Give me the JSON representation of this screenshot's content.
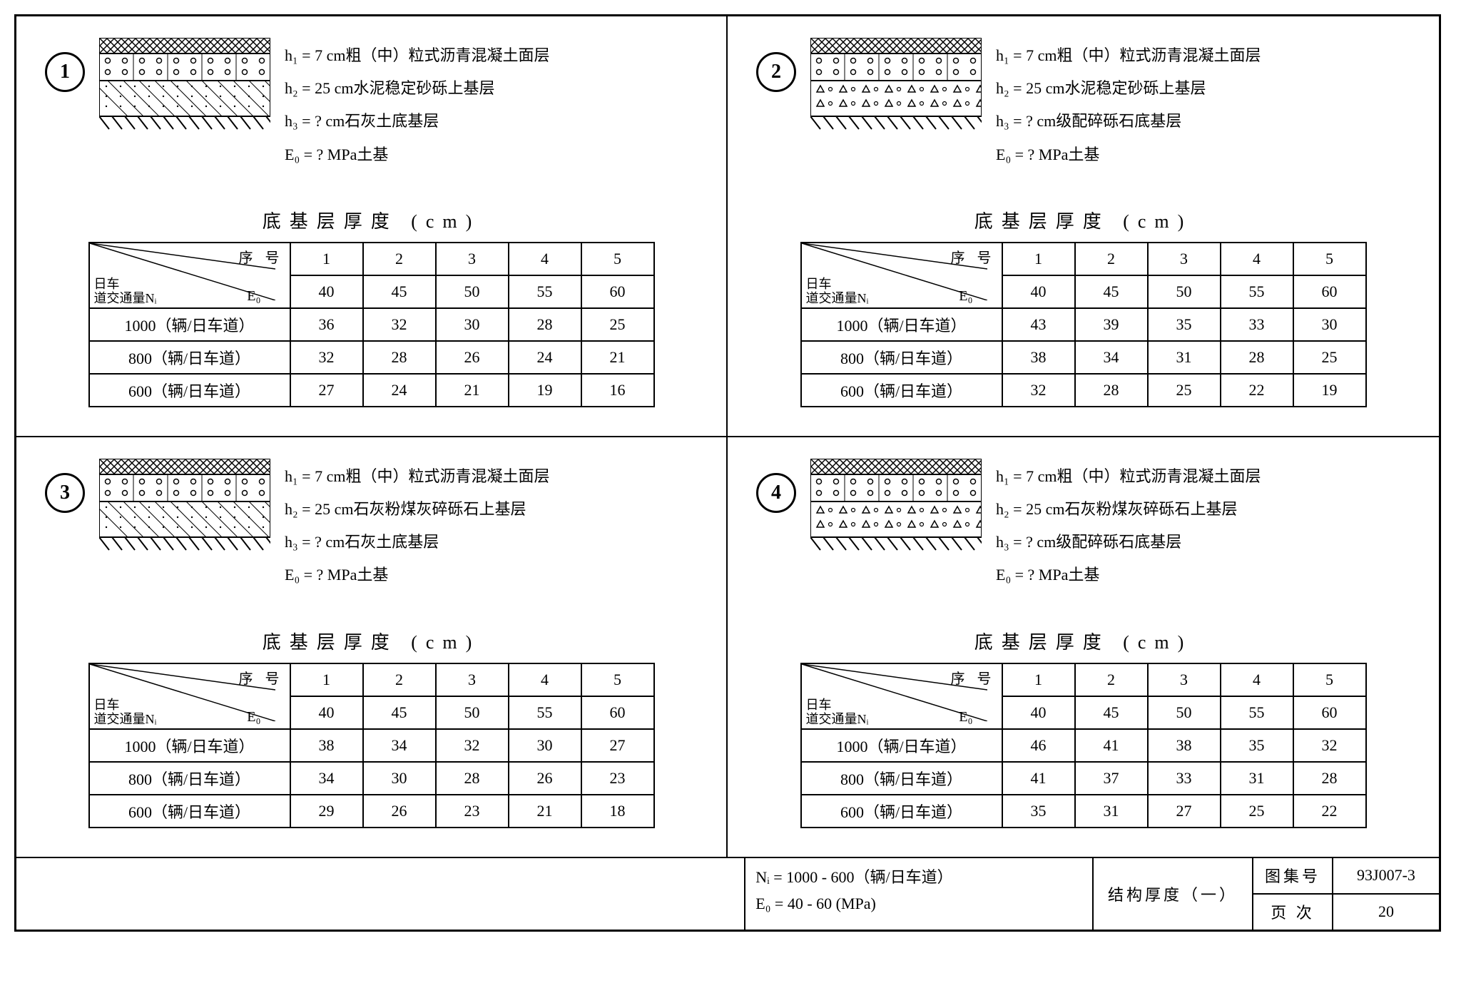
{
  "panels": [
    {
      "num": "1",
      "h1": "h₁ =  7 cm粗（中）粒式沥青混凝土面层",
      "h2": "h₂ = 25 cm水泥稳定砂砾上基层",
      "h3": "h₃ =  ? cm石灰土底基层",
      "e0": "E₀ =  ? MPa土基",
      "layer3_pattern": "dots",
      "table": {
        "title": "底基层厚度 (cm)",
        "header_top": "序 号",
        "header_left": "日车\n道交通量Nᵢ",
        "header_right": "E₀",
        "cols": [
          "1",
          "2",
          "3",
          "4",
          "5"
        ],
        "e_row": [
          "40",
          "45",
          "50",
          "55",
          "60"
        ],
        "rows": [
          {
            "label": "1000（辆/日车道）",
            "vals": [
              "36",
              "32",
              "30",
              "28",
              "25"
            ]
          },
          {
            "label": "800（辆/日车道）",
            "vals": [
              "32",
              "28",
              "26",
              "24",
              "21"
            ]
          },
          {
            "label": "600（辆/日车道）",
            "vals": [
              "27",
              "24",
              "21",
              "19",
              "16"
            ]
          }
        ]
      }
    },
    {
      "num": "2",
      "h1": "h₁ =  7 cm粗（中）粒式沥青混凝土面层",
      "h2": "h₂ = 25 cm水泥稳定砂砾上基层",
      "h3": "h₃ =  ? cm级配碎砾石底基层",
      "e0": "E₀ =  ? MPa土基",
      "layer3_pattern": "tri",
      "table": {
        "title": "底基层厚度 (cm)",
        "header_top": "序 号",
        "header_left": "日车\n道交通量Nᵢ",
        "header_right": "E₀",
        "cols": [
          "1",
          "2",
          "3",
          "4",
          "5"
        ],
        "e_row": [
          "40",
          "45",
          "50",
          "55",
          "60"
        ],
        "rows": [
          {
            "label": "1000（辆/日车道）",
            "vals": [
              "43",
              "39",
              "35",
              "33",
              "30"
            ]
          },
          {
            "label": "800（辆/日车道）",
            "vals": [
              "38",
              "34",
              "31",
              "28",
              "25"
            ]
          },
          {
            "label": "600（辆/日车道）",
            "vals": [
              "32",
              "28",
              "25",
              "22",
              "19"
            ]
          }
        ]
      }
    },
    {
      "num": "3",
      "h1": "h₁ =  7 cm粗（中）粒式沥青混凝土面层",
      "h2": "h₂ = 25 cm石灰粉煤灰碎砾石上基层",
      "h3": "h₃ =  ? cm石灰土底基层",
      "e0": "E₀ =  ? MPa土基",
      "layer3_pattern": "dots",
      "table": {
        "title": "底基层厚度 (cm)",
        "header_top": "序 号",
        "header_left": "日车\n道交通量Nᵢ",
        "header_right": "E₀",
        "cols": [
          "1",
          "2",
          "3",
          "4",
          "5"
        ],
        "e_row": [
          "40",
          "45",
          "50",
          "55",
          "60"
        ],
        "rows": [
          {
            "label": "1000（辆/日车道）",
            "vals": [
              "38",
              "34",
              "32",
              "30",
              "27"
            ]
          },
          {
            "label": "800（辆/日车道）",
            "vals": [
              "34",
              "30",
              "28",
              "26",
              "23"
            ]
          },
          {
            "label": "600（辆/日车道）",
            "vals": [
              "29",
              "26",
              "23",
              "21",
              "18"
            ]
          }
        ]
      }
    },
    {
      "num": "4",
      "h1": "h₁ =  7 cm粗（中）粒式沥青混凝土面层",
      "h2": "h₂ = 25 cm石灰粉煤灰碎砾石上基层",
      "h3": "h₃ =  ? cm级配碎砾石底基层",
      "e0": "E₀ =  ? MPa土基",
      "layer3_pattern": "tri",
      "table": {
        "title": "底基层厚度 (cm)",
        "header_top": "序 号",
        "header_left": "日车\n道交通量Nᵢ",
        "header_right": "E₀",
        "cols": [
          "1",
          "2",
          "3",
          "4",
          "5"
        ],
        "e_row": [
          "40",
          "45",
          "50",
          "55",
          "60"
        ],
        "rows": [
          {
            "label": "1000（辆/日车道）",
            "vals": [
              "46",
              "41",
              "38",
              "35",
              "32"
            ]
          },
          {
            "label": "800（辆/日车道）",
            "vals": [
              "41",
              "37",
              "33",
              "31",
              "28"
            ]
          },
          {
            "label": "600（辆/日车道）",
            "vals": [
              "35",
              "31",
              "27",
              "25",
              "22"
            ]
          }
        ]
      }
    }
  ],
  "footer": {
    "line1": "Nᵢ = 1000 - 600（辆/日车道）",
    "line2": "E₀ =   40 - 60 (MPa)",
    "mid": "结构厚度（一）",
    "set_label": "图集号",
    "set_val": "93J007-3",
    "page_label": "页 次",
    "page_val": "20"
  }
}
